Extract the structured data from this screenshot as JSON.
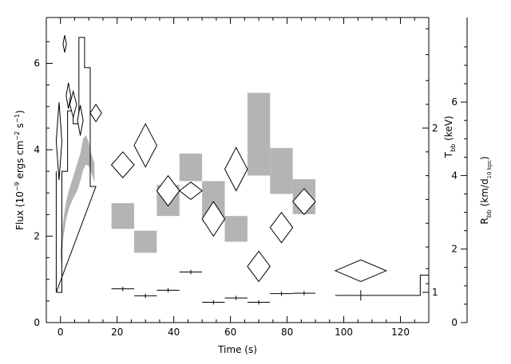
{
  "chart_data": {
    "type": "scatter",
    "xlabel": "Time (s)",
    "xlim": [
      -5,
      130
    ],
    "x_ticks": [
      "0",
      "20",
      "40",
      "60",
      "80",
      "100",
      "120"
    ],
    "y_left": {
      "label_parts": [
        "Flux (10",
        "−9",
        " ergs cm",
        "−2",
        " s",
        "−1",
        ")"
      ],
      "lim": [
        0,
        7.06
      ],
      "ticks": [
        "0",
        "2",
        "4",
        "6"
      ]
    },
    "y_mid": {
      "label_parts": [
        "T",
        "bb",
        " (keV)"
      ],
      "ticks": [
        {
          "label": "1",
          "flux": 0.7
        },
        {
          "label": "2",
          "flux": 4.5
        }
      ]
    },
    "y_right": {
      "label_parts": [
        "R",
        "bb",
        " (km/d",
        "10 kpc",
        ")"
      ],
      "lim": [
        0,
        8.3
      ],
      "ticks": [
        "0",
        "2",
        "4",
        "6"
      ]
    },
    "flux_histogram": {
      "t": [
        -1.5,
        0.5,
        2.5,
        4.5,
        6.5,
        8.5,
        10.5,
        12.5
      ],
      "flux": [
        0.7,
        3.5,
        4.9,
        4.6,
        6.6,
        5.9,
        3.15
      ]
    },
    "flux_errorbars": [
      {
        "t": 22.0,
        "t_err": 4.0,
        "flux": 0.78,
        "flux_err": 0.05
      },
      {
        "t": 30.0,
        "t_err": 4.0,
        "flux": 0.62,
        "flux_err": 0.05
      },
      {
        "t": 38.0,
        "t_err": 4.0,
        "flux": 0.75,
        "flux_err": 0.05
      },
      {
        "t": 46.0,
        "t_err": 4.0,
        "flux": 1.17,
        "flux_err": 0.05
      },
      {
        "t": 54.0,
        "t_err": 4.0,
        "flux": 0.47,
        "flux_err": 0.05
      },
      {
        "t": 62.0,
        "t_err": 4.0,
        "flux": 0.57,
        "flux_err": 0.05
      },
      {
        "t": 70.0,
        "t_err": 4.0,
        "flux": 0.47,
        "flux_err": 0.05
      },
      {
        "t": 78.0,
        "t_err": 4.0,
        "flux": 0.67,
        "flux_err": 0.05
      },
      {
        "t": 86.0,
        "t_err": 4.0,
        "flux": 0.68,
        "flux_err": 0.05
      },
      {
        "t": 106.0,
        "t_err": 9.0,
        "flux": 0.63,
        "flux_err": 0.12
      }
    ],
    "late_flux_step": [
      [
        115.0,
        0.63
      ],
      [
        127.0,
        0.63
      ],
      [
        127.0,
        1.1
      ],
      [
        130.0,
        1.1
      ]
    ],
    "temperature_diamonds": [
      {
        "t": -0.5,
        "t_err": 1.0,
        "flux": 4.2,
        "flux_err": 0.9
      },
      {
        "t": 1.5,
        "t_err": 0.6,
        "flux": 6.45,
        "flux_err": 0.2
      },
      {
        "t": 2.8,
        "t_err": 0.8,
        "flux": 5.25,
        "flux_err": 0.3
      },
      {
        "t": 4.5,
        "t_err": 1.2,
        "flux": 5.05,
        "flux_err": 0.3
      },
      {
        "t": 7.0,
        "t_err": 1.0,
        "flux": 4.68,
        "flux_err": 0.35
      },
      {
        "t": 12.5,
        "t_err": 2.0,
        "flux": 4.85,
        "flux_err": 0.2
      },
      {
        "t": 22.0,
        "t_err": 4.0,
        "flux": 3.65,
        "flux_err": 0.3
      },
      {
        "t": 30.0,
        "t_err": 4.0,
        "flux": 4.1,
        "flux_err": 0.5
      },
      {
        "t": 38.0,
        "t_err": 4.0,
        "flux": 3.05,
        "flux_err": 0.35
      },
      {
        "t": 46.0,
        "t_err": 4.0,
        "flux": 3.05,
        "flux_err": 0.2
      },
      {
        "t": 54.0,
        "t_err": 4.0,
        "flux": 2.4,
        "flux_err": 0.4
      },
      {
        "t": 62.0,
        "t_err": 4.0,
        "flux": 3.55,
        "flux_err": 0.5
      },
      {
        "t": 70.0,
        "t_err": 4.0,
        "flux": 1.3,
        "flux_err": 0.35
      },
      {
        "t": 78.0,
        "t_err": 4.0,
        "flux": 2.2,
        "flux_err": 0.35
      },
      {
        "t": 86.0,
        "t_err": 4.0,
        "flux": 2.8,
        "flux_err": 0.3
      },
      {
        "t": 106.0,
        "t_err": 9.0,
        "flux": 1.2,
        "flux_err": 0.25
      }
    ],
    "radius_boxes": [
      {
        "t0": 18.0,
        "t1": 26.0,
        "r_lo": 2.55,
        "r_hi": 3.25
      },
      {
        "t0": 26.0,
        "t1": 34.0,
        "r_lo": 1.9,
        "r_hi": 2.5
      },
      {
        "t0": 34.0,
        "t1": 42.0,
        "r_lo": 2.9,
        "r_hi": 3.75
      },
      {
        "t0": 42.0,
        "t1": 50.0,
        "r_lo": 3.85,
        "r_hi": 4.6
      },
      {
        "t0": 50.0,
        "t1": 58.0,
        "r_lo": 2.75,
        "r_hi": 3.85
      },
      {
        "t0": 58.0,
        "t1": 66.0,
        "r_lo": 2.2,
        "r_hi": 2.9
      },
      {
        "t0": 66.0,
        "t1": 74.0,
        "r_lo": 4.0,
        "r_hi": 6.25
      },
      {
        "t0": 74.0,
        "t1": 82.0,
        "r_lo": 3.5,
        "r_hi": 4.75
      },
      {
        "t0": 82.0,
        "t1": 90.0,
        "r_lo": 2.95,
        "r_hi": 3.9
      }
    ],
    "radius_band_early": {
      "t": [
        0.0,
        1.0,
        2.0,
        3.0,
        4.0,
        5.0,
        6.0,
        7.0,
        8.0,
        9.0,
        10.0,
        11.0,
        12.0
      ],
      "r_lo": [
        1.5,
        2.3,
        2.8,
        3.1,
        3.3,
        3.45,
        3.6,
        3.85,
        4.15,
        4.3,
        4.25,
        4.05,
        3.8
      ],
      "r_hi": [
        2.0,
        2.8,
        3.3,
        3.6,
        3.85,
        4.1,
        4.35,
        4.6,
        5.0,
        5.1,
        4.9,
        4.55,
        4.35
      ]
    }
  },
  "colors": {
    "ink": "#000000",
    "box_fill": "#b4b4b4",
    "background": "#ffffff"
  }
}
